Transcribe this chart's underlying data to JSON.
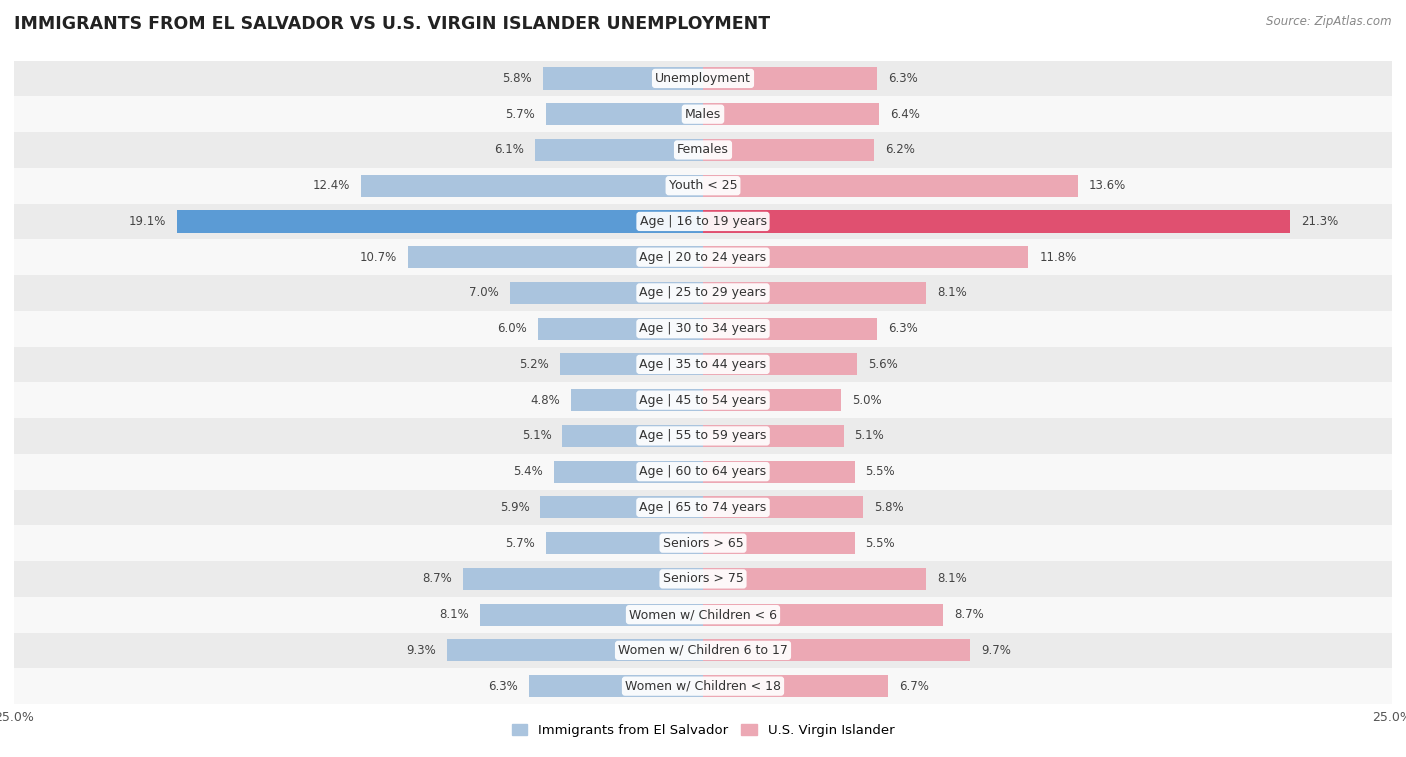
{
  "title": "IMMIGRANTS FROM EL SALVADOR VS U.S. VIRGIN ISLANDER UNEMPLOYMENT",
  "source": "Source: ZipAtlas.com",
  "categories": [
    "Unemployment",
    "Males",
    "Females",
    "Youth < 25",
    "Age | 16 to 19 years",
    "Age | 20 to 24 years",
    "Age | 25 to 29 years",
    "Age | 30 to 34 years",
    "Age | 35 to 44 years",
    "Age | 45 to 54 years",
    "Age | 55 to 59 years",
    "Age | 60 to 64 years",
    "Age | 65 to 74 years",
    "Seniors > 65",
    "Seniors > 75",
    "Women w/ Children < 6",
    "Women w/ Children 6 to 17",
    "Women w/ Children < 18"
  ],
  "left_values": [
    5.8,
    5.7,
    6.1,
    12.4,
    19.1,
    10.7,
    7.0,
    6.0,
    5.2,
    4.8,
    5.1,
    5.4,
    5.9,
    5.7,
    8.7,
    8.1,
    9.3,
    6.3
  ],
  "right_values": [
    6.3,
    6.4,
    6.2,
    13.6,
    21.3,
    11.8,
    8.1,
    6.3,
    5.6,
    5.0,
    5.1,
    5.5,
    5.8,
    5.5,
    8.1,
    8.7,
    9.7,
    6.7
  ],
  "left_color": "#aac4de",
  "right_color": "#eca8b4",
  "left_highlight_color": "#5b9bd5",
  "right_highlight_color": "#e05070",
  "highlight_index": 4,
  "left_label": "Immigrants from El Salvador",
  "right_label": "U.S. Virgin Islander",
  "xlim": 25.0,
  "bar_height": 0.62,
  "bg_color_odd": "#ebebeb",
  "bg_color_even": "#f8f8f8",
  "title_fontsize": 12.5,
  "label_fontsize": 9.0,
  "value_fontsize": 8.5
}
